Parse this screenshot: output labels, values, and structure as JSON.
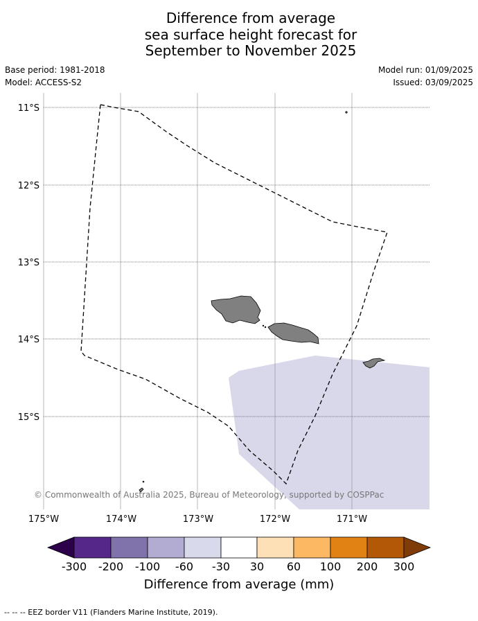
{
  "title": {
    "line1": "Difference from average",
    "line2": "sea surface height forecast for",
    "line3": "September to November 2025"
  },
  "meta": {
    "base_period": "Base period: 1981-2018",
    "model": "Model: ACCESS-S2",
    "model_run": "Model run: 01/09/2025",
    "issued": "Issued: 03/09/2025"
  },
  "map": {
    "lat_labels": [
      "11°S",
      "12°S",
      "13°S",
      "14°S",
      "15°S"
    ],
    "lon_labels": [
      "175°W",
      "174°W",
      "173°W",
      "172°W",
      "171°W"
    ],
    "extent": {
      "lon_min": -175,
      "lon_max": -170,
      "lat_min": -16.2,
      "lat_max": -10.8
    },
    "copyright": "© Commonwealth of Australia 2025, Bureau of Meteorology, supported by COSPPac",
    "land_color": "#808080",
    "anomaly_fill_color": "#d8d8ea"
  },
  "colorbar": {
    "title": "Difference from average (mm)",
    "ticks": [
      "-300",
      "-200",
      "-100",
      "-60",
      "-30",
      "30",
      "60",
      "100",
      "200",
      "300"
    ],
    "colors": [
      "#2d004b",
      "#542788",
      "#8073ac",
      "#b2abd2",
      "#d8daeb",
      "#ffffff",
      "#fee0b6",
      "#fdb863",
      "#e08214",
      "#b35806",
      "#7f3b08"
    ]
  },
  "footnote": "--  --  -- EEZ border V11 (Flanders Marine Institute, 2019)."
}
